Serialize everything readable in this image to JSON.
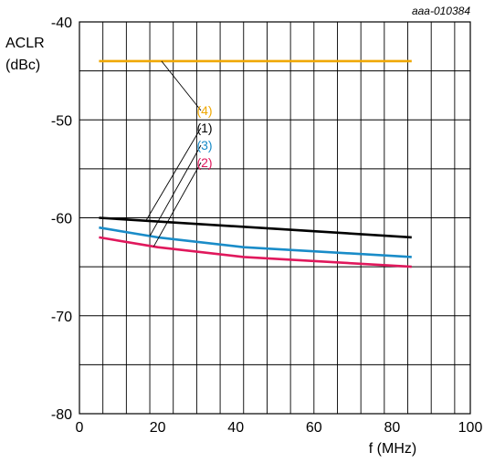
{
  "figure_id": "aaa-010384",
  "chart_data": {
    "type": "line",
    "xlabel": "f (MHz)",
    "ylabel_lines": [
      "ACLR",
      "(dBc)"
    ],
    "xlim": [
      0,
      100
    ],
    "ylim": [
      -80,
      -40
    ],
    "x_ticks": [
      0,
      20,
      40,
      60,
      80,
      100
    ],
    "y_ticks": [
      -80,
      -70,
      -60,
      -50,
      -40
    ],
    "x_tick_labels": [
      "0",
      "20",
      "40",
      "60",
      "80",
      "100"
    ],
    "y_tick_labels": [
      "-80",
      "-70",
      "-60",
      "-50",
      "-40"
    ],
    "grid": true,
    "grid_x_step": 6,
    "grid_y_step": 5,
    "series": [
      {
        "name": "(4)",
        "color": "#f0a800",
        "x": [
          5,
          85
        ],
        "y": [
          -44,
          -44
        ],
        "label_anchor_x": 21
      },
      {
        "name": "(1)",
        "color": "#000000",
        "x": [
          5,
          85
        ],
        "y": [
          -60,
          -62
        ],
        "label_anchor_x": 17
      },
      {
        "name": "(3)",
        "color": "#1a8cc8",
        "x": [
          5,
          20,
          42,
          85
        ],
        "y": [
          -61,
          -62,
          -63,
          -64
        ],
        "label_anchor_x": 18
      },
      {
        "name": "(2)",
        "color": "#e0185c",
        "x": [
          5,
          20,
          42,
          85
        ],
        "y": [
          -62,
          -63,
          -64,
          -65
        ],
        "label_anchor_x": 19
      }
    ]
  }
}
